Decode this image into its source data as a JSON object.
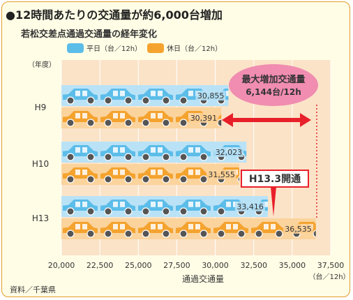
{
  "title": "●12時間あたりの交通量が約6,000台増加",
  "subtitle": "若松交差点通過交通量の経年変化",
  "legend": {
    "weekday": "平日（台／12h）",
    "holiday": "休日（台／12h）"
  },
  "source": "資料／千葉県",
  "colors": {
    "weekday": "#5cbde9",
    "weekday_band": "#b9e2f6",
    "holiday": "#f4a32f",
    "holiday_band": "#fbd39c",
    "plot_bg": "#fbe3c8",
    "arrow": "#e8202a",
    "bubble": "#f08db0"
  },
  "chart_data": {
    "type": "bar",
    "orientation": "horizontal",
    "categories": [
      "H9",
      "H10",
      "H13"
    ],
    "y_axis_label": "（年度）",
    "series": [
      {
        "name": "平日（台／12h）",
        "values": [
          30855,
          32023,
          33416
        ],
        "labels": [
          "30,855",
          "32,023",
          "33,416"
        ]
      },
      {
        "name": "休日（台／12h）",
        "values": [
          30391,
          31555,
          36535
        ],
        "labels": [
          "30,391",
          "31,555",
          "36,535"
        ]
      }
    ],
    "x_ticks": [
      20000,
      22500,
      25000,
      27500,
      30000,
      32500,
      35000,
      37500
    ],
    "x_tick_labels": [
      "20,000",
      "22,500",
      "25,000",
      "27,500",
      "30,000",
      "32,500",
      "35,000",
      "37,500"
    ],
    "xlim": [
      20000,
      37500
    ],
    "xlabel": "通過交通量",
    "x_unit": "（台／12h）",
    "grid": "vertical",
    "annotations": {
      "max_increase_line1": "最大増加交通量",
      "max_increase_line2": "6,144台/12h",
      "opening": "H13.3開通"
    }
  }
}
